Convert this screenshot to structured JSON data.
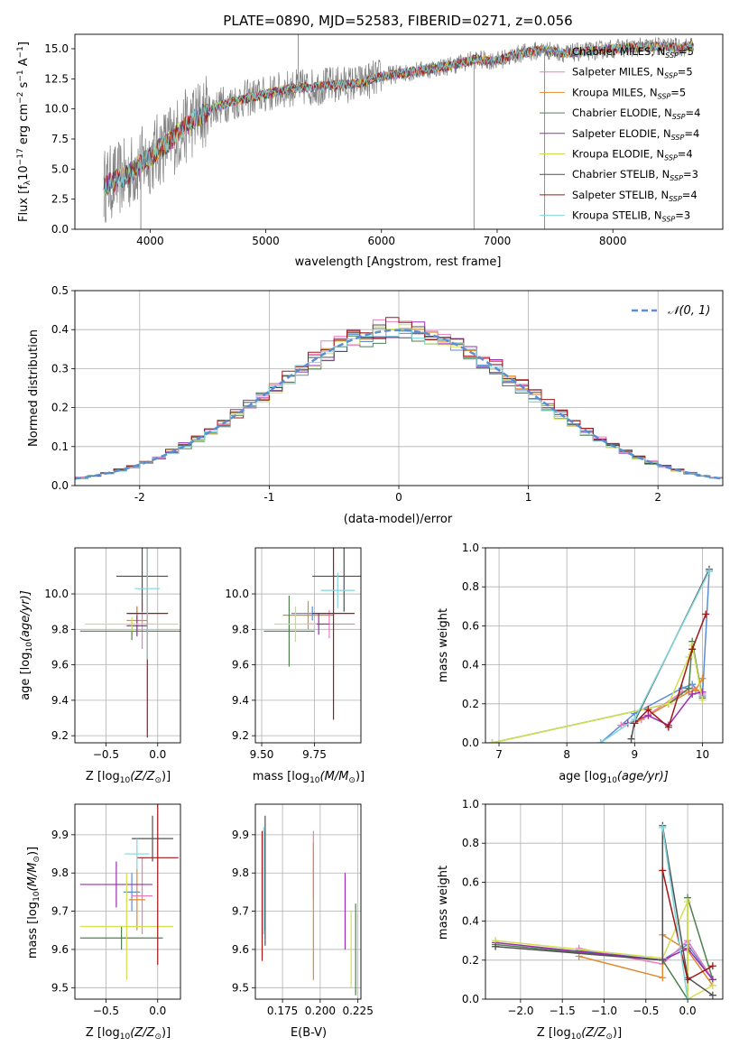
{
  "title": "PLATE=0890, MJD=52583, FIBERID=0271, z=0.056",
  "colors": {
    "Chabrier MILES": "#5b8dd6",
    "Salpeter MILES": "#e77fbf",
    "Kroupa MILES": "#e08a2e",
    "Chabrier ELODIE": "#4f7f4f",
    "Salpeter ELODIE": "#9a2fb0",
    "Kroupa ELODIE": "#d2df4e",
    "Chabrier STELIB": "#505050",
    "Salpeter STELIB": "#a01818",
    "Kroupa STELIB": "#7fd6dc",
    "spectrum": "#808080"
  },
  "chart_data": [
    {
      "id": "spectrum",
      "type": "line",
      "xlabel": "wavelength [Angstrom, rest frame]",
      "ylabel": "Flux [f",
      "ylabel_sub": "λ",
      "ylabel_rest": "10",
      "ylabel_exp1": "−17",
      "ylabel_rest2": " erg cm",
      "ylabel_exp2": "−2",
      "ylabel_rest3": " s",
      "ylabel_exp3": "−1",
      "ylabel_rest4": " A",
      "ylabel_exp4": "−1",
      "ylabel_end": "]",
      "xlim": [
        3350,
        8950
      ],
      "ylim": [
        0,
        16.2
      ],
      "xticks": [
        4000,
        5000,
        6000,
        7000,
        8000
      ],
      "yticks": [
        0.0,
        2.5,
        5.0,
        7.5,
        10.0,
        12.5,
        15.0
      ],
      "legend_position": "right",
      "legend": [
        {
          "name": "Chabrier MILES",
          "nssp": "5"
        },
        {
          "name": "Salpeter MILES",
          "nssp": "5"
        },
        {
          "name": "Kroupa MILES",
          "nssp": "5"
        },
        {
          "name": "Chabrier ELODIE",
          "nssp": "4"
        },
        {
          "name": "Salpeter ELODIE",
          "nssp": "4"
        },
        {
          "name": "Kroupa ELODIE",
          "nssp": "4"
        },
        {
          "name": "Chabrier STELIB",
          "nssp": "3"
        },
        {
          "name": "Salpeter STELIB",
          "nssp": "4"
        },
        {
          "name": "Kroupa STELIB",
          "nssp": "3"
        }
      ],
      "data_trend": {
        "x": [
          3600,
          3800,
          4000,
          4200,
          4400,
          4600,
          4800,
          5000,
          5200,
          5400,
          5600,
          5800,
          6000,
          6200,
          6400,
          6600,
          6800,
          7000,
          7200,
          7400,
          7600,
          7800,
          8000,
          8200,
          8400,
          8600,
          8700
        ],
        "y": [
          3.6,
          4.5,
          6.0,
          7.6,
          9.3,
          10.3,
          10.8,
          11.2,
          11.7,
          11.8,
          12.0,
          12.1,
          12.7,
          13.0,
          13.3,
          13.6,
          14.1,
          14.0,
          14.6,
          14.9,
          14.6,
          14.8,
          15.0,
          15.1,
          15.2,
          15.1,
          15.3
        ]
      },
      "spikes": [
        {
          "x": 5280,
          "y": 16.5
        },
        {
          "x": 6800,
          "y": 0.0
        },
        {
          "x": 7410,
          "y": 0.0
        },
        {
          "x": 3920,
          "y": 0.0
        }
      ]
    },
    {
      "id": "residuals",
      "type": "histogram",
      "xlabel": "(data-model)/error",
      "ylabel": "Normed distribution",
      "xlim": [
        -2.5,
        2.5
      ],
      "ylim": [
        0,
        0.5
      ],
      "xticks": [
        -2,
        -1,
        0,
        1,
        2
      ],
      "yticks": [
        0.0,
        0.1,
        0.2,
        0.3,
        0.4,
        0.5
      ],
      "legend": "N(0,1)",
      "legend_position": "top-right",
      "bins": {
        "start": -2.5,
        "width": 0.1,
        "count": 50
      },
      "series": [
        {
          "name": "Chabrier MILES",
          "amp": 0.395,
          "noise": 0.09
        },
        {
          "name": "Salpeter MILES",
          "amp": 0.405,
          "noise": 0.11
        },
        {
          "name": "Kroupa MILES",
          "amp": 0.4,
          "noise": 0.08
        },
        {
          "name": "Chabrier ELODIE",
          "amp": 0.39,
          "noise": 0.1
        },
        {
          "name": "Salpeter ELODIE",
          "amp": 0.4,
          "noise": 0.12
        },
        {
          "name": "Kroupa ELODIE",
          "amp": 0.395,
          "noise": 0.1
        },
        {
          "name": "Chabrier STELIB",
          "amp": 0.4,
          "noise": 0.09
        },
        {
          "name": "Salpeter STELIB",
          "amp": 0.405,
          "noise": 0.11
        },
        {
          "name": "Kroupa STELIB",
          "amp": 0.39,
          "noise": 0.08
        }
      ]
    },
    {
      "id": "z_age",
      "type": "errorbar",
      "xlabel": "Z [log",
      "xlabel_sub": "10",
      "xlabel_rest": "(Z/Z",
      "xlabel_sub2": "⊙",
      "xlabel_end": ")]",
      "ylabel": "age  [log",
      "ylabel_sub": "10",
      "ylabel_rest": "(age/yr)]",
      "xlim": [
        -0.8,
        0.22
      ],
      "ylim": [
        9.16,
        10.26
      ],
      "xticks": [
        -0.5,
        0.0
      ],
      "xtick_labels": [
        "−0.5",
        "0.0"
      ],
      "yticks": [
        9.2,
        9.4,
        9.6,
        9.8,
        10.0
      ],
      "points": [
        {
          "series": "Chabrier MILES",
          "x": -0.2,
          "xerr": 0.08,
          "y": 9.89,
          "yerr": 0.04
        },
        {
          "series": "Salpeter MILES",
          "x": -0.15,
          "xerr": 0.12,
          "y": 9.83,
          "yerr": 0.14
        },
        {
          "series": "Kroupa MILES",
          "x": -0.2,
          "xerr": 0.1,
          "y": 9.85,
          "yerr": 0.08
        },
        {
          "series": "Chabrier ELODIE",
          "x": -0.25,
          "xerr": 0.5,
          "y": 9.79,
          "yerr": 0.05
        },
        {
          "series": "Salpeter ELODIE",
          "x": -0.2,
          "xerr": 0.1,
          "y": 9.82,
          "yerr": 0.06
        },
        {
          "series": "Kroupa ELODIE",
          "x": -0.25,
          "xerr": 0.45,
          "y": 9.83,
          "yerr": 0.04
        },
        {
          "series": "Chabrier STELIB",
          "x": -0.15,
          "xerr": 0.25,
          "y": 10.1,
          "yerr": 0.2
        },
        {
          "series": "Salpeter STELIB",
          "x": -0.1,
          "xerr": 0.2,
          "y": 9.89,
          "yerr": 0.7
        },
        {
          "series": "Kroupa STELIB",
          "x": -0.1,
          "xerr": 0.12,
          "y": 10.03,
          "yerr": 0.4
        }
      ]
    },
    {
      "id": "mass_age",
      "type": "errorbar",
      "xlabel": "mass [log",
      "xlabel_sub": "10",
      "xlabel_rest": "(M/M",
      "xlabel_sub2": "⊙",
      "xlabel_end": ")]",
      "xlim": [
        9.47,
        9.97
      ],
      "ylim": [
        9.16,
        10.26
      ],
      "xticks": [
        9.5,
        9.75
      ],
      "xtick_labels": [
        "9.50",
        "9.75"
      ],
      "yticks": [
        9.2,
        9.4,
        9.6,
        9.8,
        10.0
      ],
      "points": [
        {
          "series": "Chabrier MILES",
          "x": 9.74,
          "xerr": 0.1,
          "y": 9.89,
          "yerr": 0.04
        },
        {
          "series": "Salpeter MILES",
          "x": 9.82,
          "xerr": 0.12,
          "y": 9.83,
          "yerr": 0.08
        },
        {
          "series": "Kroupa MILES",
          "x": 9.72,
          "xerr": 0.12,
          "y": 9.88,
          "yerr": 0.08
        },
        {
          "series": "Chabrier ELODIE",
          "x": 9.63,
          "xerr": 0.12,
          "y": 9.79,
          "yerr": 0.2
        },
        {
          "series": "Salpeter ELODIE",
          "x": 9.77,
          "xerr": 0.05,
          "y": 9.83,
          "yerr": 0.06
        },
        {
          "series": "Kroupa ELODIE",
          "x": 9.66,
          "xerr": 0.1,
          "y": 9.83,
          "yerr": 0.1
        },
        {
          "series": "Chabrier STELIB",
          "x": 9.89,
          "xerr": 0.15,
          "y": 10.1,
          "yerr": 0.2
        },
        {
          "series": "Salpeter STELIB",
          "x": 9.84,
          "xerr": 0.1,
          "y": 9.89,
          "yerr": 0.6
        },
        {
          "series": "Kroupa STELIB",
          "x": 9.86,
          "xerr": 0.08,
          "y": 10.02,
          "yerr": 0.1
        }
      ]
    },
    {
      "id": "age_weight",
      "type": "line",
      "xlabel": "age  [log",
      "xlabel_sub": "10",
      "xlabel_rest": "(age/yr)]",
      "ylabel": "mass weight",
      "xlim": [
        6.8,
        10.3
      ],
      "ylim": [
        0,
        1.0
      ],
      "xticks": [
        7,
        8,
        9,
        10
      ],
      "yticks": [
        0.0,
        0.2,
        0.4,
        0.6,
        0.8,
        1.0
      ],
      "grid": true,
      "series": [
        {
          "name": "Chabrier MILES",
          "x": [
            8.5,
            9.0,
            9.7,
            9.85,
            10.0,
            10.1
          ],
          "y": [
            0.0,
            0.15,
            0.28,
            0.3,
            0.24,
            0.88
          ]
        },
        {
          "name": "Salpeter MILES",
          "x": [
            8.8,
            9.1,
            9.7,
            9.85,
            10.0
          ],
          "y": [
            0.09,
            0.12,
            0.26,
            0.28,
            0.25
          ]
        },
        {
          "name": "Kroupa MILES",
          "x": [
            9.0,
            9.5,
            9.8,
            9.9,
            10.0
          ],
          "y": [
            0.1,
            0.2,
            0.26,
            0.27,
            0.33
          ]
        },
        {
          "name": "Chabrier ELODIE",
          "x": [
            6.9,
            9.5,
            9.8,
            9.85,
            10.0
          ],
          "y": [
            0.0,
            0.2,
            0.28,
            0.52,
            0.23
          ]
        },
        {
          "name": "Salpeter ELODIE",
          "x": [
            8.9,
            9.2,
            9.5,
            9.85,
            10.0
          ],
          "y": [
            0.1,
            0.14,
            0.09,
            0.25,
            0.26
          ]
        },
        {
          "name": "Kroupa ELODIE",
          "x": [
            6.9,
            9.5,
            9.8,
            9.85,
            10.0
          ],
          "y": [
            0.0,
            0.2,
            0.44,
            0.5,
            0.22
          ]
        },
        {
          "name": "Chabrier STELIB",
          "x": [
            8.95,
            9.0,
            10.1
          ],
          "y": [
            0.02,
            0.11,
            0.89
          ]
        },
        {
          "name": "Salpeter STELIB",
          "x": [
            9.0,
            9.2,
            9.5,
            9.85,
            10.05
          ],
          "y": [
            0.1,
            0.17,
            0.08,
            0.48,
            0.66
          ]
        },
        {
          "name": "Kroupa STELIB",
          "x": [
            8.5,
            9.0,
            10.1
          ],
          "y": [
            0.0,
            0.12,
            0.88
          ]
        }
      ]
    },
    {
      "id": "z_mass",
      "type": "errorbar",
      "xlabel": "Z [log",
      "xlabel_sub": "10",
      "xlabel_rest": "(Z/Z",
      "xlabel_sub2": "⊙",
      "xlabel_end": ")]",
      "ylabel": "mass [log",
      "ylabel_sub": "10",
      "ylabel_rest": "(M/M",
      "ylabel_sub2": "⊙",
      "ylabel_end": ")]",
      "xlim": [
        -0.8,
        0.22
      ],
      "ylim": [
        9.47,
        9.98
      ],
      "xticks": [
        -0.5,
        0.0
      ],
      "xtick_labels": [
        "−0.5",
        "0.0"
      ],
      "yticks": [
        9.5,
        9.6,
        9.7,
        9.8,
        9.9
      ],
      "points": [
        {
          "series": "Chabrier MILES",
          "x": -0.25,
          "xerr": 0.08,
          "y": 9.75,
          "yerr": 0.05
        },
        {
          "series": "Salpeter MILES",
          "x": -0.15,
          "xerr": 0.1,
          "y": 9.74,
          "yerr": 0.1
        },
        {
          "series": "Kroupa MILES",
          "x": -0.2,
          "xerr": 0.08,
          "y": 9.73,
          "yerr": 0.08
        },
        {
          "series": "Chabrier ELODIE",
          "x": -0.35,
          "xerr": 0.4,
          "y": 9.63,
          "yerr": 0.03
        },
        {
          "series": "Salpeter ELODIE",
          "x": -0.4,
          "xerr": 0.35,
          "y": 9.77,
          "yerr": 0.06
        },
        {
          "series": "Kroupa ELODIE",
          "x": -0.3,
          "xerr": 0.45,
          "y": 9.66,
          "yerr": 0.14
        },
        {
          "series": "Chabrier STELIB",
          "x": -0.05,
          "xerr": 0.2,
          "y": 9.89,
          "yerr": 0.06
        },
        {
          "series": "Salpeter STELIB",
          "x": 0.0,
          "xerr": 0.2,
          "y": 9.84,
          "yerr": 0.28
        },
        {
          "series": "Kroupa STELIB",
          "x": -0.2,
          "xerr": 0.12,
          "y": 9.85,
          "yerr": 0.04
        }
      ]
    },
    {
      "id": "ebv_mass",
      "type": "errorbar",
      "xlabel": "E(B-V)",
      "xlim": [
        0.157,
        0.227
      ],
      "ylim": [
        9.47,
        9.98
      ],
      "xticks": [
        0.175,
        0.2,
        0.225
      ],
      "xtick_labels": [
        "0.175",
        "0.200",
        "0.225"
      ],
      "yticks": [
        9.5,
        9.6,
        9.7,
        9.8,
        9.9
      ],
      "points": [
        {
          "series": "Chabrier MILES",
          "x": 0.1635,
          "y": 9.78,
          "yerr": 0.13
        },
        {
          "series": "Salpeter MILES",
          "x": 0.1955,
          "y": 9.82,
          "yerr": 0.09
        },
        {
          "series": "Kroupa MILES",
          "x": 0.1955,
          "y": 9.7,
          "yerr": 0.18
        },
        {
          "series": "Chabrier ELODIE",
          "x": 0.2235,
          "y": 9.6,
          "yerr": 0.12
        },
        {
          "series": "Salpeter ELODIE",
          "x": 0.2165,
          "y": 9.7,
          "yerr": 0.1
        },
        {
          "series": "Kroupa ELODIE",
          "x": 0.2205,
          "y": 9.6,
          "yerr": 0.1
        },
        {
          "series": "Chabrier STELIB",
          "x": 0.1635,
          "y": 9.78,
          "yerr": 0.17
        },
        {
          "series": "Salpeter STELIB",
          "x": 0.1615,
          "y": 9.74,
          "yerr": 0.17
        },
        {
          "series": "Kroupa STELIB",
          "x": 0.1625,
          "y": 9.78,
          "yerr": 0.14
        }
      ]
    },
    {
      "id": "z_weight",
      "type": "line",
      "xlabel": "Z [log",
      "xlabel_sub": "10",
      "xlabel_rest": "(Z/Z",
      "xlabel_sub2": "⊙",
      "xlabel_end": ")]",
      "ylabel": "mass weight",
      "xlim": [
        -2.42,
        0.42
      ],
      "ylim": [
        0,
        1.0
      ],
      "xticks": [
        -2.0,
        -1.5,
        -1.0,
        -0.5,
        0.0
      ],
      "xtick_labels": [
        "−2.0",
        "−1.5",
        "−1.0",
        "−0.5",
        "0.0"
      ],
      "yticks": [
        0.0,
        0.2,
        0.4,
        0.6,
        0.8,
        1.0
      ],
      "grid": true,
      "series": [
        {
          "name": "Chabrier MILES",
          "x": [
            -1.3,
            -0.3,
            0.0,
            0.3
          ],
          "y": [
            0.25,
            0.2,
            0.28,
            0.1
          ]
        },
        {
          "name": "Salpeter MILES",
          "x": [
            -1.3,
            -0.3,
            0.0,
            0.3
          ],
          "y": [
            0.26,
            0.18,
            0.3,
            0.1
          ]
        },
        {
          "name": "Kroupa MILES",
          "x": [
            -1.3,
            -0.3,
            -0.3,
            0.0,
            0.3
          ],
          "y": [
            0.22,
            0.11,
            0.33,
            0.25,
            0.07
          ]
        },
        {
          "name": "Chabrier ELODIE",
          "x": [
            -2.3,
            -0.3,
            0.0,
            0.0,
            0.3
          ],
          "y": [
            0.28,
            0.2,
            0.0,
            0.52,
            0.1
          ]
        },
        {
          "name": "Salpeter ELODIE",
          "x": [
            -2.3,
            -0.3,
            0.0,
            0.3
          ],
          "y": [
            0.29,
            0.2,
            0.26,
            0.1
          ]
        },
        {
          "name": "Kroupa ELODIE",
          "x": [
            -2.3,
            -0.3,
            0.0,
            0.0,
            0.3
          ],
          "y": [
            0.3,
            0.21,
            0.5,
            0.0,
            0.07
          ]
        },
        {
          "name": "Chabrier STELIB",
          "x": [
            -2.3,
            -0.3,
            -0.3,
            0.0,
            0.3
          ],
          "y": [
            0.27,
            0.2,
            0.89,
            0.11,
            0.02
          ]
        },
        {
          "name": "Salpeter STELIB",
          "x": [
            -0.3,
            0.0,
            0.3
          ],
          "y": [
            0.66,
            0.1,
            0.17
          ]
        },
        {
          "name": "Kroupa STELIB",
          "x": [
            -0.3,
            0.0
          ],
          "y": [
            0.88,
            0.0
          ]
        }
      ]
    }
  ]
}
